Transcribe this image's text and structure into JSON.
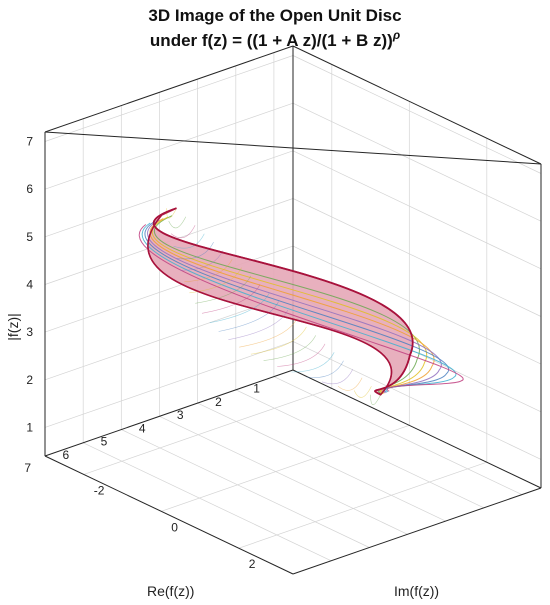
{
  "chart_data": {
    "type": "3d-surface",
    "title_line1": "3D Image of the Open Unit Disc",
    "title_line2": "under f(z) = ((1 + A z)/(1 + B z))",
    "title_exponent": "ρ",
    "xlabel": "Re(f(z))",
    "ylabel": "Im(f(z))",
    "zlabel": "|f(z)|",
    "xlim": [
      0.5,
      7
    ],
    "ylim": [
      -3,
      3.4
    ],
    "zlim": [
      0.4,
      7.2
    ],
    "x_ticks": [
      "1",
      "2",
      "3",
      "4",
      "5",
      "6",
      "7"
    ],
    "y_ticks": [
      "-2",
      "0",
      "2"
    ],
    "z_ticks": [
      "1",
      "2",
      "3",
      "4",
      "5",
      "6",
      "7"
    ],
    "grid": true,
    "surface": {
      "base_point": [
        1.25,
        0,
        1.25
      ],
      "apex_point": [
        6.6,
        0,
        6.65
      ],
      "outer_bulge_point": [
        1.6,
        1.1,
        2.6
      ],
      "fill_color": "#e6a8b8",
      "edge_color": "#a8123c"
    },
    "inner_contour_colors": [
      "#6aa84f",
      "#e0c020",
      "#f0a030",
      "#9070c0",
      "#4a80c0",
      "#40b0d0",
      "#c04080"
    ]
  }
}
